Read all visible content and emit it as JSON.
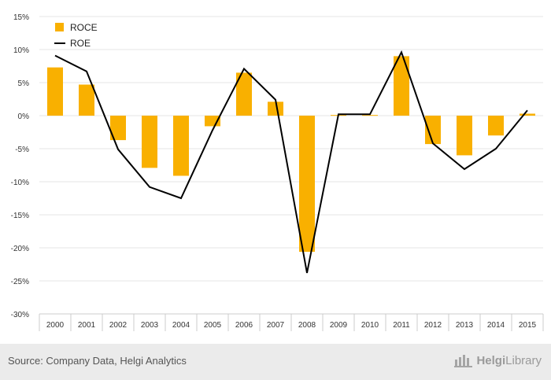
{
  "chart_data": {
    "type": "bar",
    "categories": [
      "2000",
      "2001",
      "2002",
      "2003",
      "2004",
      "2005",
      "2006",
      "2007",
      "2008",
      "2009",
      "2010",
      "2011",
      "2012",
      "2013",
      "2014",
      "2015"
    ],
    "series": [
      {
        "name": "ROCE",
        "kind": "bar",
        "color": "#f9b000",
        "values": [
          7.3,
          4.7,
          -3.7,
          -7.9,
          -9.1,
          -1.6,
          6.5,
          2.1,
          -20.6,
          0.1,
          0.1,
          9.0,
          -4.3,
          -6.0,
          -3.0,
          0.3
        ]
      },
      {
        "name": "ROE",
        "kind": "line",
        "color": "#000000",
        "values": [
          9.1,
          6.7,
          -5.1,
          -10.8,
          -12.5,
          -2.2,
          7.1,
          2.4,
          -23.8,
          0.2,
          0.2,
          9.6,
          -4.2,
          -8.1,
          -5.0,
          0.8
        ]
      }
    ],
    "y_ticks": [
      "15%",
      "10%",
      "5%",
      "0%",
      "-5%",
      "-10%",
      "-15%",
      "-20%",
      "-25%",
      "-30%"
    ],
    "ylim": [
      -30,
      15
    ],
    "legend_position": "top-left",
    "grid": true
  },
  "footer": {
    "source": "Source: Company Data, Helgi Analytics",
    "brand_prefix": "Helgi",
    "brand_suffix": "Library"
  }
}
